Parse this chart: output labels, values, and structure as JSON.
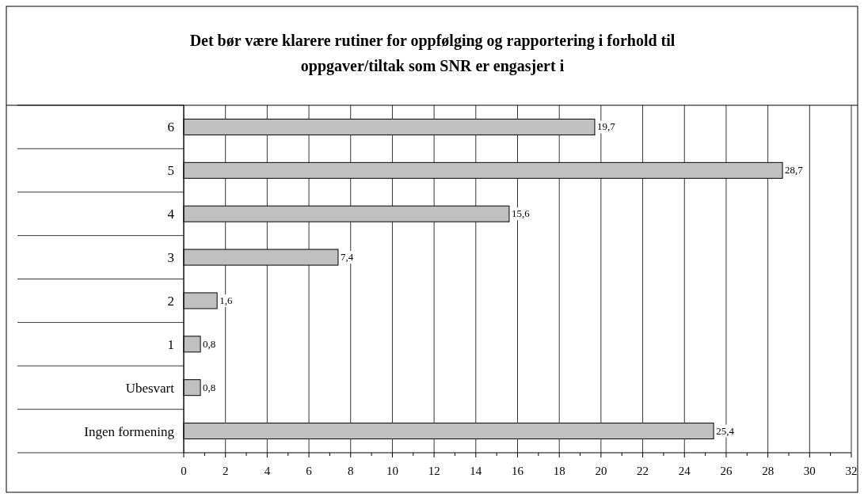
{
  "chart_data": {
    "type": "bar",
    "orientation": "horizontal",
    "title": "Det bør være klarere rutiner for oppfølging og rapportering i forhold til oppgaver/tiltak som SNR er engasjert i",
    "categories": [
      "6",
      "5",
      "4",
      "3",
      "2",
      "1",
      "Ubesvart",
      "Ingen formening"
    ],
    "values": [
      19.7,
      28.7,
      15.6,
      7.4,
      1.6,
      0.8,
      0.8,
      25.4
    ],
    "value_labels": [
      "19,7",
      "28,7",
      "15,6",
      "7,4",
      "1,6",
      "0,8",
      "0,8",
      "25,4"
    ],
    "color": "#c0c0c0",
    "xlim": [
      0,
      32
    ],
    "xticks": [
      0,
      2,
      4,
      6,
      8,
      10,
      12,
      14,
      16,
      18,
      20,
      22,
      24,
      26,
      28,
      30,
      32
    ],
    "grid": "x"
  }
}
